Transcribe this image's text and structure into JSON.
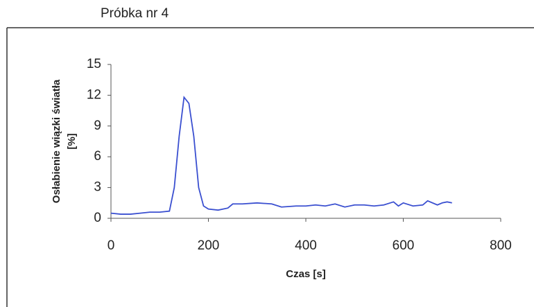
{
  "chart_data": {
    "type": "line",
    "title": "Próbka nr 4",
    "x_label": "Czas [s]",
    "y_label": [
      "Osłabienie wiązki światła",
      "[%]"
    ],
    "x": [
      0,
      20,
      40,
      60,
      80,
      100,
      120,
      130,
      140,
      150,
      160,
      170,
      180,
      190,
      200,
      220,
      240,
      250,
      270,
      300,
      330,
      350,
      380,
      400,
      420,
      440,
      460,
      480,
      500,
      520,
      540,
      560,
      580,
      590,
      600,
      620,
      640,
      650,
      670,
      680,
      690,
      700
    ],
    "series": [
      {
        "color": "#3a4fd0",
        "values": [
          0.5,
          0.4,
          0.4,
          0.5,
          0.6,
          0.6,
          0.7,
          3,
          8,
          11.8,
          11.2,
          8,
          3,
          1.2,
          0.9,
          0.8,
          1.0,
          1.4,
          1.4,
          1.5,
          1.4,
          1.1,
          1.2,
          1.2,
          1.3,
          1.2,
          1.4,
          1.1,
          1.3,
          1.3,
          1.2,
          1.3,
          1.6,
          1.2,
          1.5,
          1.2,
          1.3,
          1.7,
          1.3,
          1.5,
          1.6,
          1.5
        ]
      }
    ],
    "xlim": [
      0,
      800
    ],
    "xticks": [
      0,
      200,
      400,
      600,
      800
    ],
    "ylim": [
      0,
      15
    ],
    "yticks": [
      0,
      3,
      6,
      9,
      12,
      15
    ],
    "grid": false
  }
}
